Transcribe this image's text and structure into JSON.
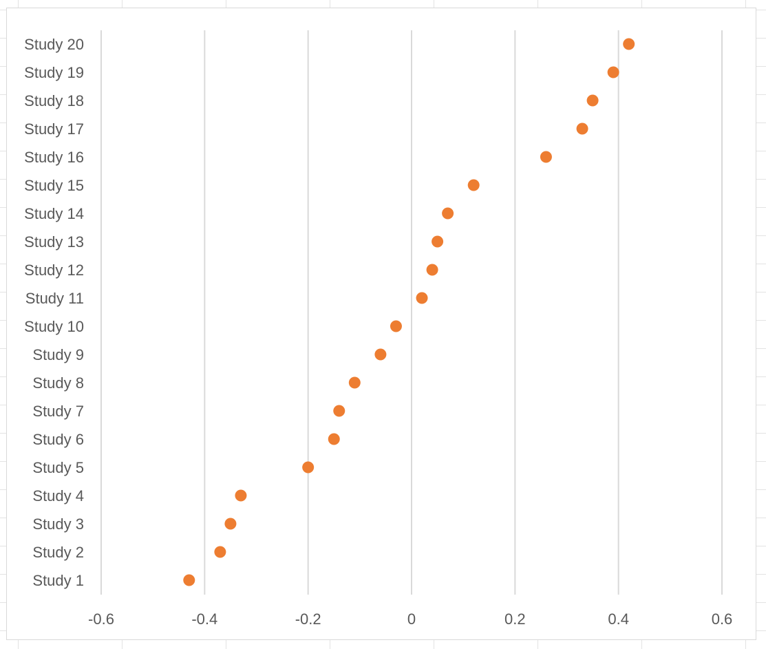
{
  "chart_data": {
    "type": "scatter",
    "title": "",
    "xlabel": "",
    "ylabel": "",
    "xlim": [
      -0.6,
      0.6
    ],
    "x_ticks": [
      "-0.6",
      "-0.4",
      "-0.2",
      "0",
      "0.2",
      "0.4",
      "0.6"
    ],
    "x_tick_values": [
      -0.6,
      -0.4,
      -0.2,
      0,
      0.2,
      0.4,
      0.6
    ],
    "grid": "vertical",
    "marker_color": "#ed7d31",
    "gridline_color": "#d9d9d9",
    "categories": [
      "Study 1",
      "Study 2",
      "Study 3",
      "Study 4",
      "Study 5",
      "Study 6",
      "Study 7",
      "Study 8",
      "Study 9",
      "Study 10",
      "Study 11",
      "Study 12",
      "Study 13",
      "Study 14",
      "Study 15",
      "Study 16",
      "Study 17",
      "Study 18",
      "Study 19",
      "Study 20"
    ],
    "values": [
      -0.43,
      -0.37,
      -0.35,
      -0.33,
      -0.2,
      -0.15,
      -0.14,
      -0.11,
      -0.06,
      -0.03,
      0.02,
      0.04,
      0.05,
      0.07,
      0.12,
      0.26,
      0.33,
      0.35,
      0.39,
      0.42
    ]
  }
}
